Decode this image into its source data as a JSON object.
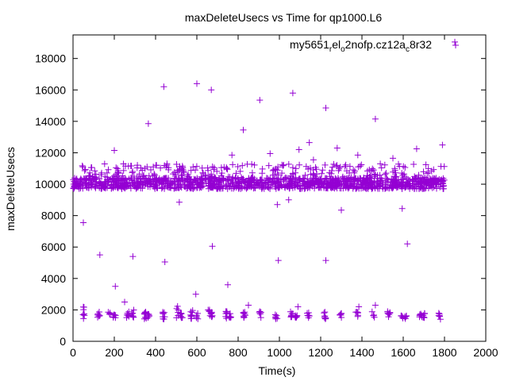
{
  "chart_data": {
    "type": "scatter",
    "title": "maxDeleteUsecs vs Time for qp1000.L6",
    "xlabel": "Time(s)",
    "ylabel": "maxDeleteUsecs",
    "xlim": [
      0,
      2000
    ],
    "ylim": [
      0,
      19500
    ],
    "xticks": [
      0,
      200,
      400,
      600,
      800,
      1000,
      1200,
      1400,
      1600,
      1800,
      2000
    ],
    "yticks": [
      0,
      2000,
      4000,
      6000,
      8000,
      10000,
      12000,
      14000,
      16000,
      18000
    ],
    "grid": false,
    "marker": "+",
    "series": [
      {
        "name": "my5651_rel_o2nofp.cz12a_c8r32",
        "legend_parts": [
          {
            "text": "my5651",
            "sub": false
          },
          {
            "text": "r",
            "sub": true
          },
          {
            "text": "el",
            "sub": false
          },
          {
            "text": "o",
            "sub": true
          },
          {
            "text": "2nofp.cz12a",
            "sub": false
          },
          {
            "text": "c",
            "sub": true
          },
          {
            "text": "8r32",
            "sub": false
          }
        ],
        "color": "#9400d3",
        "outliers": [
          [
            1850,
            19050
          ],
          [
            600,
            16400
          ],
          [
            440,
            16200
          ],
          [
            670,
            16000
          ],
          [
            1065,
            15800
          ],
          [
            905,
            15350
          ],
          [
            1225,
            14850
          ],
          [
            1465,
            14150
          ],
          [
            365,
            13850
          ],
          [
            825,
            13450
          ],
          [
            1145,
            12650
          ],
          [
            1790,
            12500
          ],
          [
            1280,
            12300
          ],
          [
            1095,
            12200
          ],
          [
            1665,
            12250
          ],
          [
            955,
            11950
          ],
          [
            1550,
            11650
          ],
          [
            1380,
            11850
          ],
          [
            200,
            12150
          ],
          [
            770,
            11850
          ],
          [
            1165,
            11550
          ],
          [
            50,
            7550
          ],
          [
            990,
            8700
          ],
          [
            1045,
            9000
          ],
          [
            515,
            8850
          ],
          [
            1300,
            8350
          ],
          [
            1595,
            8450
          ],
          [
            130,
            5500
          ],
          [
            290,
            5400
          ],
          [
            445,
            5050
          ],
          [
            675,
            6050
          ],
          [
            1620,
            6200
          ],
          [
            995,
            5150
          ],
          [
            1225,
            5150
          ],
          [
            205,
            3500
          ],
          [
            750,
            3600
          ],
          [
            595,
            3000
          ],
          [
            250,
            2500
          ],
          [
            850,
            2300
          ],
          [
            1465,
            2300
          ],
          [
            1090,
            2200
          ],
          [
            1385,
            2200
          ]
        ],
        "main_band": {
          "x_from": 0,
          "x_to": 1800,
          "center": 10000,
          "spread": [
            9700,
            10400
          ],
          "upper_spread": [
            10400,
            11300
          ],
          "count": 1500
        },
        "low_clusters": [
          {
            "x": 50,
            "y_range": [
              1400,
              2200
            ]
          },
          {
            "x": 125,
            "y_range": [
              1500,
              1900
            ]
          },
          {
            "x": 175,
            "y_range": [
              1600,
              1900
            ]
          },
          {
            "x": 200,
            "y_range": [
              1500,
              1800
            ]
          },
          {
            "x": 265,
            "y_range": [
              1400,
              1900
            ]
          },
          {
            "x": 290,
            "y_range": [
              1500,
              2000
            ]
          },
          {
            "x": 350,
            "y_range": [
              1400,
              1900
            ]
          },
          {
            "x": 365,
            "y_range": [
              1500,
              1800
            ]
          },
          {
            "x": 440,
            "y_range": [
              1400,
              1900
            ]
          },
          {
            "x": 505,
            "y_range": [
              1500,
              2300
            ]
          },
          {
            "x": 525,
            "y_range": [
              1500,
              1800
            ]
          },
          {
            "x": 575,
            "y_range": [
              1400,
              2000
            ]
          },
          {
            "x": 600,
            "y_range": [
              1400,
              1800
            ]
          },
          {
            "x": 660,
            "y_range": [
              1500,
              2100
            ]
          },
          {
            "x": 670,
            "y_range": [
              1400,
              1900
            ]
          },
          {
            "x": 745,
            "y_range": [
              1400,
              1900
            ]
          },
          {
            "x": 760,
            "y_range": [
              1500,
              1800
            ]
          },
          {
            "x": 830,
            "y_range": [
              1500,
              1900
            ]
          },
          {
            "x": 905,
            "y_range": [
              1500,
              1900
            ]
          },
          {
            "x": 985,
            "y_range": [
              1400,
              1700
            ]
          },
          {
            "x": 1060,
            "y_range": [
              1400,
              1900
            ]
          },
          {
            "x": 1080,
            "y_range": [
              1500,
              1800
            ]
          },
          {
            "x": 1140,
            "y_range": [
              1500,
              1900
            ]
          },
          {
            "x": 1220,
            "y_range": [
              1400,
              1900
            ]
          },
          {
            "x": 1295,
            "y_range": [
              1500,
              1800
            ]
          },
          {
            "x": 1375,
            "y_range": [
              1500,
              1900
            ]
          },
          {
            "x": 1455,
            "y_range": [
              1500,
              1900
            ]
          },
          {
            "x": 1530,
            "y_range": [
              1500,
              1900
            ]
          },
          {
            "x": 1595,
            "y_range": [
              1400,
              1800
            ]
          },
          {
            "x": 1610,
            "y_range": [
              1400,
              1700
            ]
          },
          {
            "x": 1685,
            "y_range": [
              1400,
              1800
            ]
          },
          {
            "x": 1700,
            "y_range": [
              1500,
              1900
            ]
          },
          {
            "x": 1775,
            "y_range": [
              1400,
              1800
            ]
          }
        ]
      }
    ]
  }
}
